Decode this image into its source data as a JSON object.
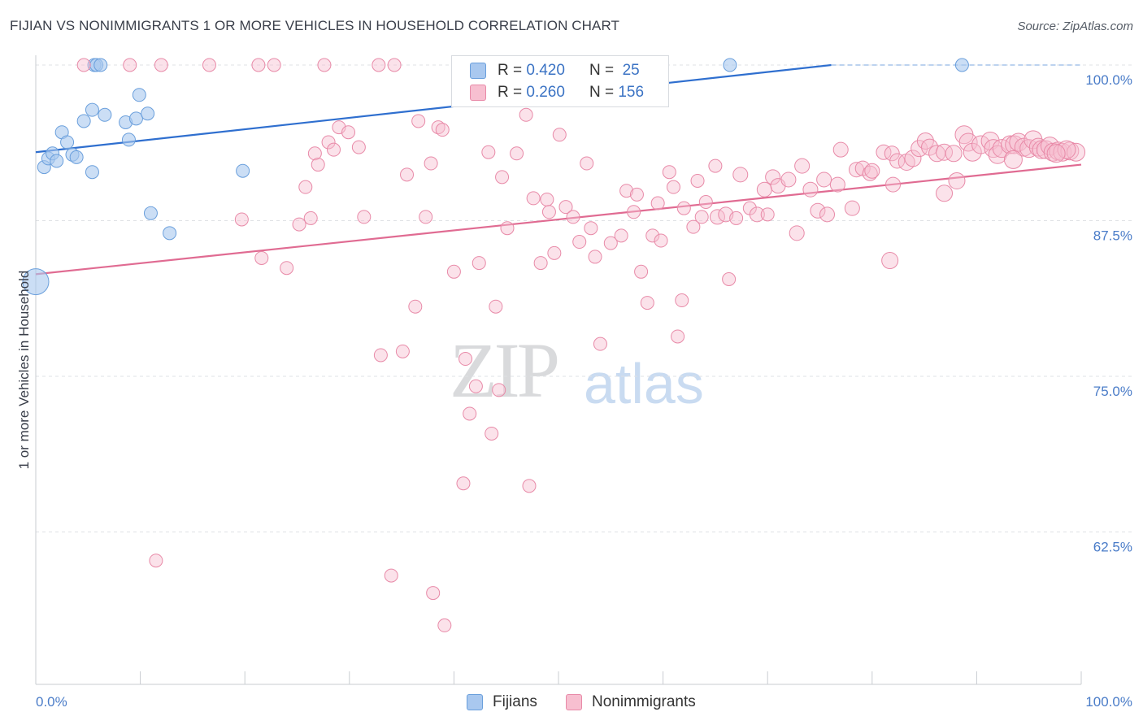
{
  "header": {
    "title": "FIJIAN VS NONIMMIGRANTS 1 OR MORE VEHICLES IN HOUSEHOLD CORRELATION CHART",
    "source": "Source: ZipAtlas.com"
  },
  "watermark": {
    "zip": "ZIP",
    "atlas": "atlas"
  },
  "legend": {
    "rows": [
      {
        "r_label": "R = ",
        "r_value": "0.420",
        "n_label": "N = ",
        "n_value": "25",
        "color": "#a9c8ef",
        "border": "#6a9fdc"
      },
      {
        "r_label": "R = ",
        "r_value": "0.260",
        "n_label": "N = ",
        "n_value": "156",
        "color": "#f7bfd0",
        "border": "#e88aa8"
      }
    ]
  },
  "bottom_legend": {
    "fijians": "Fijians",
    "nonimmigrants": "Nonimmigrants"
  },
  "chart_data": {
    "type": "scatter",
    "title": "FIJIAN VS NONIMMIGRANTS 1 OR MORE VEHICLES IN HOUSEHOLD CORRELATION CHART",
    "xlabel": "",
    "ylabel": "1 or more Vehicles in Household",
    "xlim": [
      0,
      100
    ],
    "ylim": [
      51.5,
      101.0
    ],
    "x_tick_labels": [
      "0.0%",
      "100.0%"
    ],
    "y_ticks": [
      100.0,
      87.5,
      75.0,
      62.5
    ],
    "y_tick_labels": [
      "100.0%",
      "87.5%",
      "75.0%",
      "62.5%"
    ],
    "grid": true,
    "legend_position": "top-center",
    "series": [
      {
        "name": "Fijians",
        "color": "#a9c8ef",
        "stroke": "#6a9fdc",
        "trend": {
          "x": [
            0,
            100
          ],
          "y": [
            93.0,
            102.2
          ],
          "color": "#2f6fcf"
        },
        "points": [
          [
            0.0,
            82.6,
            16
          ],
          [
            0.8,
            91.8,
            8
          ],
          [
            1.2,
            92.5,
            8
          ],
          [
            1.6,
            92.9,
            8
          ],
          [
            2.0,
            92.3,
            8
          ],
          [
            2.5,
            94.6,
            8
          ],
          [
            3.0,
            93.8,
            8
          ],
          [
            3.5,
            92.8,
            8
          ],
          [
            3.9,
            92.6,
            8
          ],
          [
            4.6,
            95.5,
            8
          ],
          [
            5.4,
            96.4,
            8
          ],
          [
            5.6,
            100.0,
            8
          ],
          [
            5.8,
            100.0,
            8
          ],
          [
            6.2,
            100.0,
            8
          ],
          [
            5.4,
            91.4,
            8
          ],
          [
            6.6,
            96.0,
            8
          ],
          [
            8.6,
            95.4,
            8
          ],
          [
            8.9,
            94.0,
            8
          ],
          [
            9.6,
            95.7,
            8
          ],
          [
            9.9,
            97.6,
            8
          ],
          [
            10.7,
            96.1,
            8
          ],
          [
            11.0,
            88.1,
            8
          ],
          [
            12.8,
            86.5,
            8
          ],
          [
            19.8,
            91.5,
            8
          ],
          [
            66.4,
            100.0,
            8
          ],
          [
            88.6,
            100.0,
            8
          ]
        ]
      },
      {
        "name": "Nonimmigrants",
        "color": "#f7bfd0",
        "stroke": "#e88aa8",
        "trend": {
          "x": [
            0,
            100
          ],
          "y": [
            83.2,
            92.0
          ],
          "color": "#e06b92"
        },
        "points": [
          [
            4.6,
            100.0,
            8
          ],
          [
            9.0,
            100.0,
            8
          ],
          [
            12.0,
            100.0,
            8
          ],
          [
            16.6,
            100.0,
            8
          ],
          [
            21.3,
            100.0,
            8
          ],
          [
            22.8,
            100.0,
            8
          ],
          [
            27.6,
            100.0,
            8
          ],
          [
            32.8,
            100.0,
            8
          ],
          [
            34.3,
            100.0,
            8
          ],
          [
            11.5,
            60.2,
            8
          ],
          [
            19.7,
            87.6,
            8
          ],
          [
            21.6,
            84.5,
            8
          ],
          [
            24.0,
            83.7,
            8
          ],
          [
            25.2,
            87.2,
            8
          ],
          [
            25.8,
            90.2,
            8
          ],
          [
            26.3,
            87.7,
            8
          ],
          [
            26.7,
            92.9,
            8
          ],
          [
            27.0,
            92.0,
            8
          ],
          [
            28.0,
            93.8,
            8
          ],
          [
            29.0,
            95.0,
            8
          ],
          [
            29.9,
            94.6,
            8
          ],
          [
            28.5,
            93.2,
            8
          ],
          [
            30.9,
            93.4,
            8
          ],
          [
            31.4,
            87.8,
            8
          ],
          [
            33.0,
            76.7,
            8
          ],
          [
            34.0,
            59.0,
            8
          ],
          [
            35.1,
            77.0,
            8
          ],
          [
            35.5,
            91.2,
            8
          ],
          [
            36.3,
            80.6,
            8
          ],
          [
            36.6,
            95.5,
            8
          ],
          [
            37.3,
            87.8,
            8
          ],
          [
            37.8,
            92.1,
            8
          ],
          [
            38.0,
            57.6,
            8
          ],
          [
            38.5,
            95.0,
            8
          ],
          [
            38.9,
            94.8,
            8
          ],
          [
            39.1,
            55.0,
            8
          ],
          [
            40.0,
            83.4,
            8
          ],
          [
            40.9,
            66.4,
            8
          ],
          [
            41.1,
            76.4,
            8
          ],
          [
            41.5,
            72.0,
            8
          ],
          [
            42.1,
            74.2,
            8
          ],
          [
            42.4,
            84.1,
            8
          ],
          [
            43.3,
            93.0,
            8
          ],
          [
            43.6,
            70.4,
            8
          ],
          [
            44.0,
            80.6,
            8
          ],
          [
            44.3,
            73.9,
            8
          ],
          [
            44.6,
            91.0,
            8
          ],
          [
            45.1,
            86.9,
            8
          ],
          [
            46.0,
            92.9,
            8
          ],
          [
            46.9,
            96.0,
            8
          ],
          [
            47.2,
            66.2,
            8
          ],
          [
            47.6,
            89.3,
            8
          ],
          [
            48.3,
            84.1,
            8
          ],
          [
            48.9,
            89.2,
            8
          ],
          [
            49.1,
            88.2,
            8
          ],
          [
            49.6,
            84.9,
            8
          ],
          [
            50.1,
            94.4,
            8
          ],
          [
            50.7,
            88.6,
            8
          ],
          [
            51.4,
            87.8,
            8
          ],
          [
            52.0,
            85.8,
            8
          ],
          [
            52.7,
            92.1,
            8
          ],
          [
            53.1,
            86.9,
            8
          ],
          [
            53.5,
            84.6,
            8
          ],
          [
            54.0,
            77.6,
            8
          ],
          [
            55.0,
            85.7,
            8
          ],
          [
            56.0,
            86.3,
            8
          ],
          [
            56.5,
            89.9,
            8
          ],
          [
            57.2,
            88.2,
            8
          ],
          [
            57.5,
            89.6,
            8
          ],
          [
            57.9,
            83.4,
            8
          ],
          [
            58.5,
            80.9,
            8
          ],
          [
            59.0,
            86.3,
            8
          ],
          [
            59.5,
            88.9,
            8
          ],
          [
            59.8,
            85.9,
            8
          ],
          [
            60.6,
            91.4,
            8
          ],
          [
            61.0,
            90.2,
            8
          ],
          [
            61.4,
            78.2,
            8
          ],
          [
            61.8,
            81.1,
            8
          ],
          [
            62.0,
            88.5,
            8
          ],
          [
            62.9,
            87.0,
            8
          ],
          [
            63.3,
            90.7,
            8
          ],
          [
            63.7,
            87.8,
            8
          ],
          [
            64.1,
            89.0,
            8
          ],
          [
            65.0,
            91.9,
            8
          ],
          [
            65.2,
            87.8,
            9
          ],
          [
            66.0,
            88.0,
            9
          ],
          [
            66.3,
            82.8,
            8
          ],
          [
            67.0,
            87.7,
            8
          ],
          [
            67.4,
            91.2,
            9
          ],
          [
            68.3,
            88.5,
            8
          ],
          [
            69.0,
            88.0,
            9
          ],
          [
            69.7,
            90.0,
            9
          ],
          [
            70.0,
            88.0,
            8
          ],
          [
            70.5,
            91.0,
            9
          ],
          [
            71.0,
            90.3,
            9
          ],
          [
            72.0,
            90.8,
            9
          ],
          [
            72.8,
            86.5,
            9
          ],
          [
            73.3,
            91.9,
            9
          ],
          [
            74.1,
            90.0,
            9
          ],
          [
            74.8,
            88.3,
            9
          ],
          [
            75.4,
            90.8,
            9
          ],
          [
            75.7,
            88.0,
            9
          ],
          [
            76.7,
            90.4,
            9
          ],
          [
            77.0,
            93.2,
            9
          ],
          [
            78.1,
            88.5,
            9
          ],
          [
            78.5,
            91.6,
            9
          ],
          [
            79.1,
            91.7,
            9
          ],
          [
            79.8,
            91.3,
            9
          ],
          [
            80.0,
            91.5,
            9
          ],
          [
            81.1,
            93.0,
            9
          ],
          [
            81.9,
            92.9,
            9
          ],
          [
            81.7,
            84.3,
            10
          ],
          [
            82.0,
            90.4,
            9
          ],
          [
            82.4,
            92.3,
            9
          ],
          [
            83.3,
            92.2,
            10
          ],
          [
            83.9,
            92.5,
            10
          ],
          [
            84.5,
            93.3,
            10
          ],
          [
            85.1,
            93.9,
            10
          ],
          [
            85.5,
            93.4,
            10
          ],
          [
            86.2,
            92.9,
            10
          ],
          [
            86.9,
            93.0,
            10
          ],
          [
            86.9,
            89.7,
            10
          ],
          [
            87.8,
            92.9,
            10
          ],
          [
            88.1,
            90.7,
            10
          ],
          [
            88.8,
            94.4,
            11
          ],
          [
            89.2,
            93.8,
            11
          ],
          [
            89.6,
            93.0,
            11
          ],
          [
            90.4,
            93.6,
            11
          ],
          [
            91.3,
            93.9,
            11
          ],
          [
            91.6,
            93.3,
            11
          ],
          [
            92.0,
            92.8,
            11
          ],
          [
            92.4,
            93.3,
            11
          ],
          [
            93.2,
            93.6,
            11
          ],
          [
            93.6,
            93.6,
            11
          ],
          [
            94.0,
            93.8,
            11
          ],
          [
            94.5,
            93.4,
            11
          ],
          [
            95.0,
            93.3,
            11
          ],
          [
            95.4,
            94.0,
            11
          ],
          [
            95.9,
            93.4,
            11
          ],
          [
            96.2,
            93.2,
            11
          ],
          [
            96.6,
            93.2,
            11
          ],
          [
            97.0,
            93.5,
            11
          ],
          [
            97.3,
            93.0,
            11
          ],
          [
            97.8,
            93.1,
            11
          ],
          [
            98.2,
            93.0,
            11
          ],
          [
            98.9,
            93.1,
            11
          ],
          [
            99.5,
            93.0,
            11
          ],
          [
            98.6,
            93.2,
            11
          ],
          [
            97.6,
            92.9,
            11
          ],
          [
            93.5,
            92.4,
            11
          ]
        ]
      }
    ]
  }
}
